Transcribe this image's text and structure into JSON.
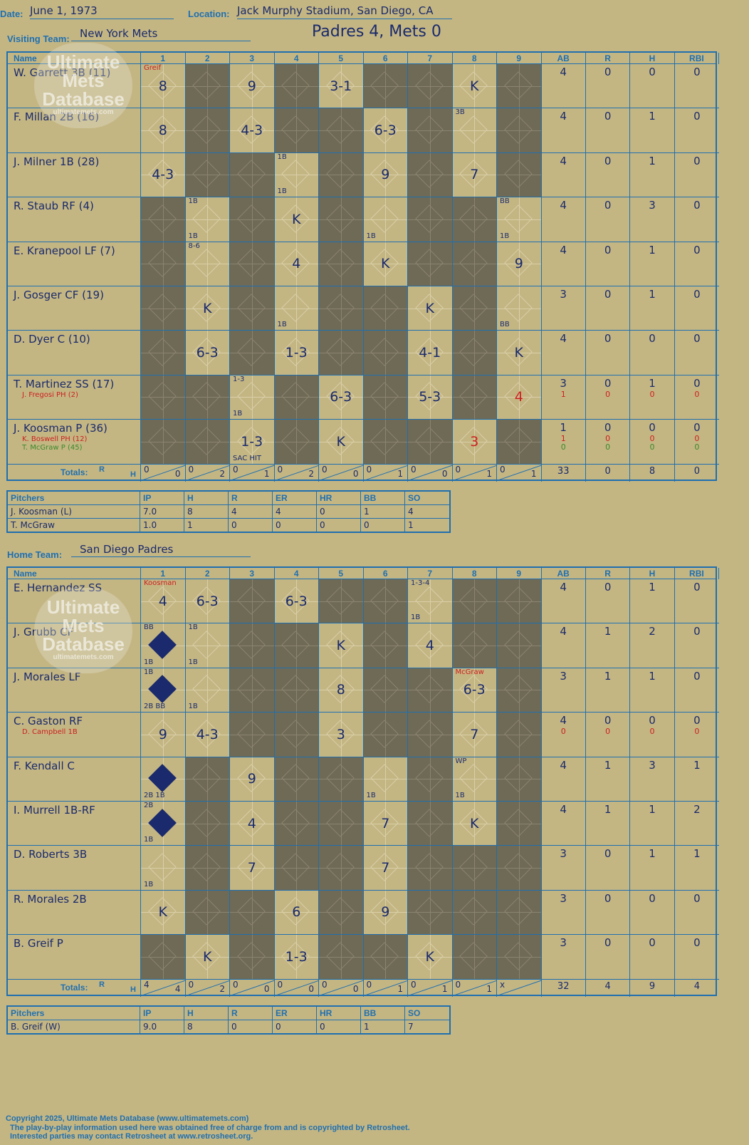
{
  "header": {
    "date_label": "Date:",
    "date": "June 1, 1973",
    "location_label": "Location:",
    "location": "Jack Murphy Stadium, San Diego, CA",
    "visiting_label": "Visiting Team:",
    "visiting_team": "New York Mets",
    "result": "Padres 4, Mets 0",
    "home_label": "Home Team:",
    "home_team": "San Diego Padres"
  },
  "columns": {
    "name": "Name",
    "innings": [
      "1",
      "2",
      "3",
      "4",
      "5",
      "6",
      "7",
      "8",
      "9"
    ],
    "stats": [
      "AB",
      "R",
      "H",
      "RBI"
    ]
  },
  "watermark": {
    "line1": "Ultimate",
    "line2": "Mets",
    "line3": "Database",
    "url": "ultimatemets.com"
  },
  "visitors": {
    "batters": [
      {
        "name": "W. Garrett 3B (11)",
        "subs": [],
        "ab": "4",
        "r": "0",
        "h": "0",
        "rbi": "0",
        "cells": [
          {
            "p": "8",
            "n": "Greif",
            "nc": "red"
          },
          {
            "dark": true
          },
          {
            "p": "9"
          },
          {
            "dark": true
          },
          {
            "p": "3-1"
          },
          {
            "dark": true
          },
          {
            "dark": true
          },
          {
            "p": "K"
          },
          {
            "dark": true
          }
        ]
      },
      {
        "name": "F. Millan 2B (16)",
        "subs": [],
        "ab": "4",
        "r": "0",
        "h": "1",
        "rbi": "0",
        "cells": [
          {
            "p": "8"
          },
          {
            "dark": true
          },
          {
            "p": "4-3"
          },
          {
            "dark": true
          },
          {
            "dark": true
          },
          {
            "p": "6-3"
          },
          {
            "dark": true
          },
          {
            "p": "",
            "n": "3B"
          },
          {
            "dark": true
          }
        ]
      },
      {
        "name": "J. Milner 1B (28)",
        "subs": [],
        "ab": "4",
        "r": "0",
        "h": "1",
        "rbi": "0",
        "cells": [
          {
            "p": "4-3"
          },
          {
            "dark": true
          },
          {
            "dark": true
          },
          {
            "p": "",
            "n": "1B",
            "b": "1B"
          },
          {
            "dark": true
          },
          {
            "p": "9"
          },
          {
            "dark": true
          },
          {
            "p": "7"
          },
          {
            "dark": true
          }
        ]
      },
      {
        "name": "R. Staub RF (4)",
        "subs": [],
        "ab": "4",
        "r": "0",
        "h": "3",
        "rbi": "0",
        "cells": [
          {
            "dark": true
          },
          {
            "p": "",
            "n": "1B",
            "b": "1B"
          },
          {
            "dark": true
          },
          {
            "p": "K"
          },
          {
            "dark": true
          },
          {
            "p": "",
            "b": "1B"
          },
          {
            "dark": true
          },
          {
            "dark": true
          },
          {
            "p": "",
            "n": "BB",
            "b": "1B"
          }
        ]
      },
      {
        "name": "E. Kranepool LF (7)",
        "subs": [],
        "ab": "4",
        "r": "0",
        "h": "1",
        "rbi": "0",
        "cells": [
          {
            "dark": true
          },
          {
            "p": "",
            "n": "8-6"
          },
          {
            "dark": true
          },
          {
            "p": "4"
          },
          {
            "dark": true
          },
          {
            "p": "K"
          },
          {
            "dark": true
          },
          {
            "dark": true
          },
          {
            "p": "9"
          }
        ]
      },
      {
        "name": "J. Gosger CF (19)",
        "subs": [],
        "ab": "3",
        "r": "0",
        "h": "1",
        "rbi": "0",
        "cells": [
          {
            "dark": true
          },
          {
            "p": "K"
          },
          {
            "dark": true
          },
          {
            "p": "",
            "b": "1B"
          },
          {
            "dark": true
          },
          {
            "dark": true
          },
          {
            "p": "K"
          },
          {
            "dark": true
          },
          {
            "p": "",
            "b": "BB"
          }
        ]
      },
      {
        "name": "D. Dyer C (10)",
        "subs": [],
        "ab": "4",
        "r": "0",
        "h": "0",
        "rbi": "0",
        "cells": [
          {
            "dark": true
          },
          {
            "p": "6-3"
          },
          {
            "dark": true
          },
          {
            "p": "1-3"
          },
          {
            "dark": true
          },
          {
            "dark": true
          },
          {
            "p": "4-1"
          },
          {
            "dark": true
          },
          {
            "p": "K"
          }
        ]
      },
      {
        "name": "T. Martinez SS (17)",
        "subs": [
          {
            "t": "J. Fregosi PH (2)",
            "c": "red",
            "ab": "1",
            "r": "0",
            "h": "0",
            "rbi": "0"
          }
        ],
        "ab": "3",
        "r": "0",
        "h": "1",
        "rbi": "0",
        "cells": [
          {
            "dark": true
          },
          {
            "dark": true
          },
          {
            "p": "",
            "n": "1-3",
            "b": "1B"
          },
          {
            "dark": true
          },
          {
            "p": "6-3"
          },
          {
            "dark": true
          },
          {
            "p": "5-3"
          },
          {
            "dark": true
          },
          {
            "p": "4",
            "pc": "red"
          }
        ]
      },
      {
        "name": "J. Koosman P (36)",
        "subs": [
          {
            "t": "K. Boswell PH (12)",
            "c": "red",
            "ab": "1",
            "r": "0",
            "h": "0",
            "rbi": "0"
          },
          {
            "t": "T. McGraw P (45)",
            "c": "green",
            "ab": "0",
            "r": "0",
            "h": "0",
            "rbi": "0"
          }
        ],
        "ab": "1",
        "r": "0",
        "h": "0",
        "rbi": "0",
        "cells": [
          {
            "dark": true
          },
          {
            "dark": true
          },
          {
            "p": "1-3",
            "b": "SAC HIT"
          },
          {
            "dark": true
          },
          {
            "p": "K"
          },
          {
            "dark": true
          },
          {
            "dark": true
          },
          {
            "p": "3",
            "pc": "red"
          },
          {
            "dark": true
          }
        ]
      }
    ],
    "totals_label": "Totals:",
    "rh_r": "R",
    "rh_h": "H",
    "inning_totals": [
      [
        "0",
        "0"
      ],
      [
        "0",
        "2"
      ],
      [
        "0",
        "1"
      ],
      [
        "0",
        "2"
      ],
      [
        "0",
        "0"
      ],
      [
        "0",
        "1"
      ],
      [
        "0",
        "0"
      ],
      [
        "0",
        "1"
      ],
      [
        "0",
        "1"
      ]
    ],
    "totals": {
      "ab": "33",
      "r": "0",
      "h": "8",
      "rbi": "0"
    },
    "pitchers": [
      {
        "name": "J. Koosman (L)",
        "ip": "7.0",
        "h": "8",
        "r": "4",
        "er": "4",
        "hr": "0",
        "bb": "1",
        "so": "4"
      },
      {
        "name": "T. McGraw",
        "ip": "1.0",
        "h": "1",
        "r": "0",
        "er": "0",
        "hr": "0",
        "bb": "0",
        "so": "1"
      }
    ]
  },
  "home": {
    "batters": [
      {
        "name": "E. Hernandez SS",
        "subs": [],
        "ab": "4",
        "r": "0",
        "h": "1",
        "rbi": "0",
        "cells": [
          {
            "p": "4",
            "n": "Koosman",
            "nc": "red"
          },
          {
            "p": "6-3"
          },
          {
            "dark": true
          },
          {
            "p": "6-3"
          },
          {
            "dark": true
          },
          {
            "dark": true
          },
          {
            "p": "",
            "n": "1-3-4",
            "b": "1B"
          },
          {
            "dark": true
          },
          {
            "dark": true
          }
        ]
      },
      {
        "name": "J. Grubb CF",
        "subs": [],
        "ab": "4",
        "r": "1",
        "h": "2",
        "rbi": "0",
        "cells": [
          {
            "p": "",
            "run": true,
            "n": "BB",
            "b": "1B"
          },
          {
            "p": "",
            "n": "1B",
            "b": "1B"
          },
          {
            "dark": true
          },
          {
            "dark": true
          },
          {
            "p": "K"
          },
          {
            "dark": true
          },
          {
            "p": "4"
          },
          {
            "dark": true
          },
          {
            "dark": true
          }
        ]
      },
      {
        "name": "J. Morales LF",
        "subs": [],
        "ab": "3",
        "r": "1",
        "h": "1",
        "rbi": "0",
        "cells": [
          {
            "p": "",
            "run": true,
            "n": "1B",
            "b": "2B BB"
          },
          {
            "p": "",
            "b": "1B"
          },
          {
            "dark": true
          },
          {
            "dark": true
          },
          {
            "p": "8"
          },
          {
            "dark": true
          },
          {
            "dark": true
          },
          {
            "p": "6-3",
            "n": "McGraw",
            "nc": "red"
          },
          {
            "dark": true
          }
        ]
      },
      {
        "name": "C. Gaston RF",
        "subs": [
          {
            "t": "D. Campbell 1B",
            "c": "red",
            "ab": "0",
            "r": "0",
            "h": "0",
            "rbi": "0"
          }
        ],
        "ab": "4",
        "r": "0",
        "h": "0",
        "rbi": "0",
        "cells": [
          {
            "p": "9"
          },
          {
            "p": "4-3"
          },
          {
            "dark": true
          },
          {
            "dark": true
          },
          {
            "p": "3"
          },
          {
            "dark": true
          },
          {
            "dark": true
          },
          {
            "p": "7"
          },
          {
            "dark": true
          }
        ]
      },
      {
        "name": "F. Kendall C",
        "subs": [],
        "ab": "4",
        "r": "1",
        "h": "3",
        "rbi": "1",
        "cells": [
          {
            "p": "",
            "run": true,
            "b": "2B 1B"
          },
          {
            "dark": true
          },
          {
            "p": "9"
          },
          {
            "dark": true
          },
          {
            "dark": true
          },
          {
            "p": "",
            "b": "1B"
          },
          {
            "dark": true
          },
          {
            "p": "",
            "n": "WP",
            "b": "1B"
          },
          {
            "dark": true
          }
        ]
      },
      {
        "name": "I. Murrell 1B-RF",
        "subs": [],
        "ab": "4",
        "r": "1",
        "h": "1",
        "rbi": "2",
        "cells": [
          {
            "p": "",
            "run": true,
            "n": "2B",
            "b": "1B"
          },
          {
            "dark": true
          },
          {
            "p": "4"
          },
          {
            "dark": true
          },
          {
            "dark": true
          },
          {
            "p": "7"
          },
          {
            "dark": true
          },
          {
            "p": "K"
          },
          {
            "dark": true
          }
        ]
      },
      {
        "name": "D. Roberts 3B",
        "subs": [],
        "ab": "3",
        "r": "0",
        "h": "1",
        "rbi": "1",
        "cells": [
          {
            "p": "",
            "b": "1B"
          },
          {
            "dark": true
          },
          {
            "p": "7"
          },
          {
            "dark": true
          },
          {
            "dark": true
          },
          {
            "p": "7"
          },
          {
            "dark": true
          },
          {
            "dark": true
          },
          {
            "dark": true
          }
        ]
      },
      {
        "name": "R. Morales 2B",
        "subs": [],
        "ab": "3",
        "r": "0",
        "h": "0",
        "rbi": "0",
        "cells": [
          {
            "p": "K"
          },
          {
            "dark": true
          },
          {
            "dark": true
          },
          {
            "p": "6"
          },
          {
            "dark": true
          },
          {
            "p": "9"
          },
          {
            "dark": true
          },
          {
            "dark": true
          },
          {
            "dark": true
          }
        ]
      },
      {
        "name": "B. Greif P",
        "subs": [],
        "ab": "3",
        "r": "0",
        "h": "0",
        "rbi": "0",
        "cells": [
          {
            "dark": true
          },
          {
            "p": "K"
          },
          {
            "dark": true
          },
          {
            "p": "1-3"
          },
          {
            "dark": true
          },
          {
            "dark": true
          },
          {
            "p": "K"
          },
          {
            "dark": true
          },
          {
            "dark": true
          }
        ]
      }
    ],
    "totals_label": "Totals:",
    "rh_r": "R",
    "rh_h": "H",
    "inning_totals": [
      [
        "4",
        "4"
      ],
      [
        "0",
        "2"
      ],
      [
        "0",
        "0"
      ],
      [
        "0",
        "0"
      ],
      [
        "0",
        "0"
      ],
      [
        "0",
        "1"
      ],
      [
        "0",
        "1"
      ],
      [
        "0",
        "1"
      ],
      [
        "x",
        ""
      ]
    ],
    "totals": {
      "ab": "32",
      "r": "4",
      "h": "9",
      "rbi": "4"
    },
    "pitchers": [
      {
        "name": "B. Greif (W)",
        "ip": "9.0",
        "h": "8",
        "r": "0",
        "er": "0",
        "hr": "0",
        "bb": "1",
        "so": "7"
      }
    ]
  },
  "pitcher_columns": {
    "name": "Pitchers",
    "cols": [
      "IP",
      "H",
      "R",
      "ER",
      "HR",
      "BB",
      "SO"
    ]
  },
  "footer": {
    "line1": "Copyright 2025, Ultimate Mets Database (www.ultimatemets.com)",
    "line2": "The play-by-play information used here was obtained free of charge from and is copyrighted by Retrosheet.",
    "line3": "Interested parties may contact Retrosheet at www.retrosheet.org."
  },
  "colors": {
    "paper": "#c4b683",
    "ink": "#1a2a6c",
    "rule": "#1f6fb0",
    "dark": "#6f6a55",
    "red": "#cc1f1f",
    "green": "#3a8a2a"
  }
}
